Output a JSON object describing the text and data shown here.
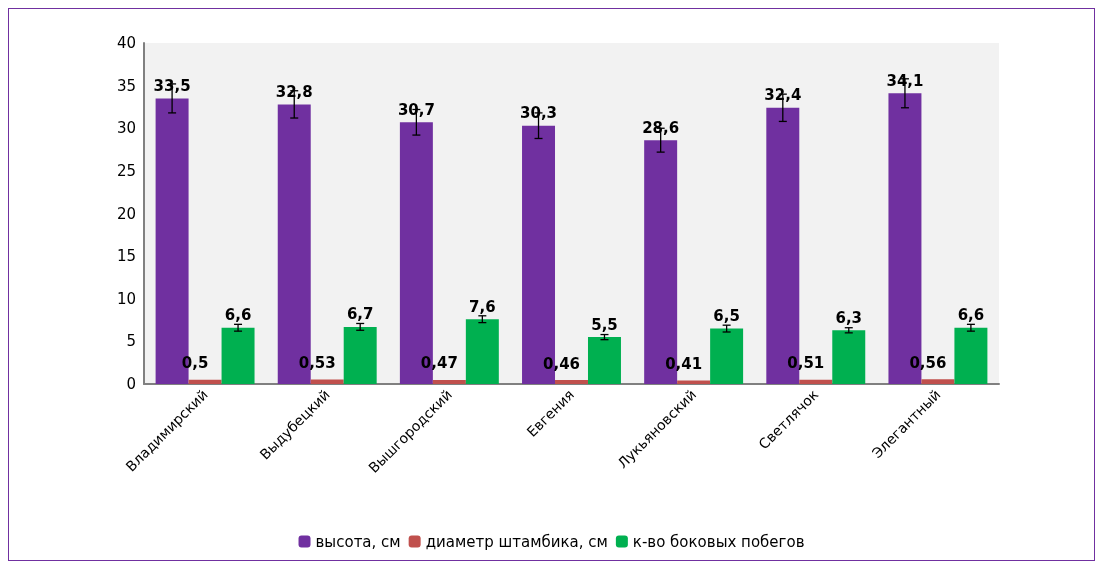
{
  "chart_data": {
    "type": "bar",
    "categories": [
      "Владимирский",
      "Выдубецкий",
      "Вышгородский",
      "Евгения",
      "Лукьяновский",
      "Светлячок",
      "Элегантный"
    ],
    "series": [
      {
        "name": "высота, см",
        "color": "#7030a0",
        "values": [
          33.5,
          32.8,
          30.7,
          30.3,
          28.6,
          32.4,
          34.1
        ],
        "value_labels": [
          "33,5",
          "32,8",
          "30,7",
          "30,3",
          "28,6",
          "32,4",
          "34,1"
        ],
        "errors": [
          1.7,
          1.6,
          1.5,
          1.5,
          1.4,
          1.6,
          1.7
        ]
      },
      {
        "name": "диаметр штамбика, см",
        "color": "#c0504d",
        "values": [
          0.5,
          0.53,
          0.47,
          0.46,
          0.41,
          0.51,
          0.56
        ],
        "value_labels": [
          "0,5",
          "0,53",
          "0,47",
          "0,46",
          "0,41",
          "0,51",
          "0,56"
        ]
      },
      {
        "name": "к-во боковых побегов",
        "color": "#00b050",
        "values": [
          6.6,
          6.7,
          7.6,
          5.5,
          6.5,
          6.3,
          6.6
        ],
        "value_labels": [
          "6,6",
          "6,7",
          "7,6",
          "5,5",
          "6,5",
          "6,3",
          "6,6"
        ],
        "errors": [
          0.4,
          0.4,
          0.4,
          0.3,
          0.4,
          0.3,
          0.4
        ]
      }
    ],
    "ylim": [
      0,
      40
    ],
    "yticks": [
      0,
      5,
      10,
      15,
      20,
      25,
      30,
      35,
      40
    ],
    "grid": false,
    "legend": "bottom"
  }
}
